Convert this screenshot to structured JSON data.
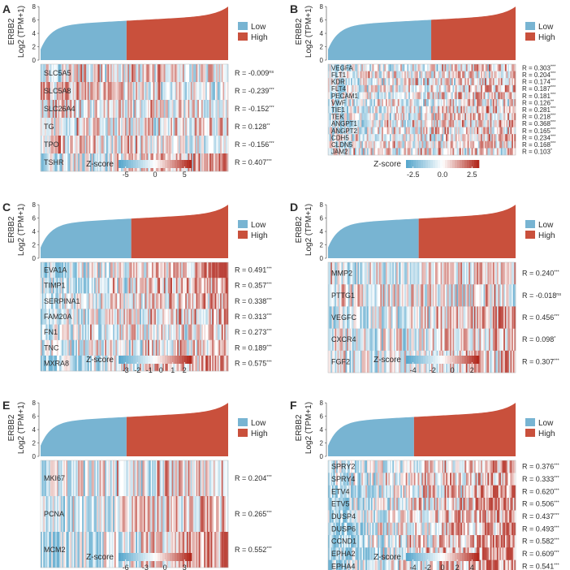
{
  "colors": {
    "low": "#78b4d2",
    "high": "#c9503c",
    "text": "#2b2b2b"
  },
  "chart_data": [
    {
      "panel": "A",
      "type": "heatmap",
      "ylabel_gene": "ERBB2",
      "ylabel_unit": "Log2 (TPM+1)",
      "yticks": [
        0,
        2,
        4,
        6,
        8
      ],
      "ylim": [
        0,
        8.5
      ],
      "split_fraction": 0.46,
      "legend": [
        "Low",
        "High"
      ],
      "colorbar_title": "Z-score",
      "colorbar_ticks": [
        "-5",
        "0",
        "5"
      ],
      "genes": [
        "SLC5A5",
        "SLC5A8",
        "SLC26A4",
        "TG",
        "TPO",
        "TSHR"
      ],
      "r_values": [
        "R = -0.009",
        "R = -0.239",
        "R = -0.152",
        "R = 0.128",
        "R = -0.156",
        "R = 0.407"
      ],
      "significance": [
        "ns",
        "***",
        "***",
        "**",
        "***",
        "***"
      ]
    },
    {
      "panel": "B",
      "type": "heatmap",
      "ylabel_gene": "ERBB2",
      "ylabel_unit": "Log2 (TPM+1)",
      "yticks": [
        0,
        2,
        4,
        6,
        8
      ],
      "ylim": [
        0,
        8.5
      ],
      "split_fraction": 0.55,
      "legend": [
        "Low",
        "High"
      ],
      "colorbar_title": "Z-score",
      "colorbar_ticks": [
        "-2.5",
        "0.0",
        "2.5"
      ],
      "genes": [
        "VEGFA",
        "FLT1",
        "KDR",
        "FLT4",
        "PECAM1",
        "VWF",
        "TIE1",
        "TEK",
        "ANGPT1",
        "ANGPT2",
        "CDH5",
        "CLDN5",
        "JAM2"
      ],
      "r_values": [
        "R = 0.303",
        "R = 0.204",
        "R = 0.174",
        "R = 0.187",
        "R = 0.181",
        "R = 0.126",
        "R = 0.281",
        "R = 0.218",
        "R = 0.368",
        "R = 0.165",
        "R = 0.234",
        "R = 0.168",
        "R = 0.103"
      ],
      "significance": [
        "***",
        "***",
        "***",
        "***",
        "***",
        "**",
        "***",
        "***",
        "***",
        "***",
        "***",
        "***",
        "*"
      ]
    },
    {
      "panel": "C",
      "type": "heatmap",
      "ylabel_gene": "ERBB2",
      "ylabel_unit": "Log2 (TPM+1)",
      "yticks": [
        0,
        2,
        4,
        6,
        8
      ],
      "ylim": [
        0,
        8.5
      ],
      "split_fraction": 0.48,
      "legend": [
        "Low",
        "High"
      ],
      "colorbar_title": "Z-score",
      "colorbar_ticks": [
        "-3",
        "-2",
        "-1",
        "0",
        "1",
        "2"
      ],
      "genes": [
        "EVA1A",
        "TIMP1",
        "SERPINA1",
        "FAM20A",
        "FN1",
        "TNC",
        "MXRA8"
      ],
      "r_values": [
        "R = 0.491",
        "R = 0.357",
        "R = 0.338",
        "R = 0.313",
        "R = 0.273",
        "R = 0.189",
        "R = 0.575"
      ],
      "significance": [
        "***",
        "***",
        "***",
        "***",
        "***",
        "***",
        "***"
      ]
    },
    {
      "panel": "D",
      "type": "heatmap",
      "ylabel_gene": "ERBB2",
      "ylabel_unit": "Log2 (TPM+1)",
      "yticks": [
        0,
        2,
        4,
        6,
        8
      ],
      "ylim": [
        0,
        8.5
      ],
      "split_fraction": 0.48,
      "legend": [
        "Low",
        "High"
      ],
      "colorbar_title": "Z-score",
      "colorbar_ticks": [
        "-4",
        "-2",
        "0",
        "2"
      ],
      "genes": [
        "MMP2",
        "PTTG1",
        "VEGFC",
        "CXCR4",
        "FGF2"
      ],
      "r_values": [
        "R = 0.240",
        "R = -0.018",
        "R = 0.456",
        "R = 0.098",
        "R = 0.307"
      ],
      "significance": [
        "***",
        "ns",
        "***",
        "*",
        "***"
      ]
    },
    {
      "panel": "E",
      "type": "heatmap",
      "ylabel_gene": "ERBB2",
      "ylabel_unit": "Log2 (TPM+1)",
      "yticks": [
        0,
        2,
        4,
        6,
        8
      ],
      "ylim": [
        0,
        8.5
      ],
      "split_fraction": 0.46,
      "legend": [
        "Low",
        "High"
      ],
      "colorbar_title": "Z-score",
      "colorbar_ticks": [
        "-6",
        "-3",
        "0",
        "3"
      ],
      "genes": [
        "MKI67",
        "PCNA",
        "MCM2"
      ],
      "r_values": [
        "R = 0.204",
        "R = 0.265",
        "R = 0.552"
      ],
      "significance": [
        "***",
        "***",
        "***"
      ]
    },
    {
      "panel": "F",
      "type": "heatmap",
      "ylabel_gene": "ERBB2",
      "ylabel_unit": "Log2 (TPM+1)",
      "yticks": [
        0,
        2,
        4,
        6,
        8
      ],
      "ylim": [
        0,
        8.5
      ],
      "split_fraction": 0.46,
      "legend": [
        "Low",
        "High"
      ],
      "colorbar_title": "Z-score",
      "colorbar_ticks": [
        "-4",
        "-2",
        "0",
        "2",
        "4"
      ],
      "genes": [
        "SPRY2",
        "SPRY4",
        "ETV4",
        "ETV5",
        "DUSP4",
        "DUSP6",
        "CCND1",
        "EPHA2",
        "EPHA4"
      ],
      "r_values": [
        "R = 0.376",
        "R = 0.333",
        "R = 0.620",
        "R = 0.506",
        "R = 0.437",
        "R = 0.493",
        "R = 0.582",
        "R = 0.609",
        "R = 0.541"
      ],
      "significance": [
        "***",
        "***",
        "***",
        "***",
        "***",
        "***",
        "***",
        "***",
        "***"
      ]
    }
  ]
}
